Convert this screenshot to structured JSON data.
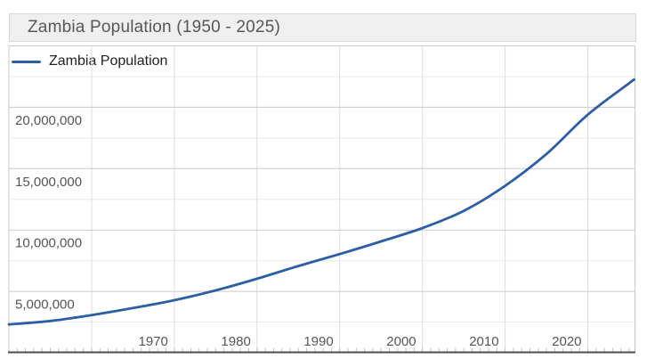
{
  "page": {
    "background": "#ffffff"
  },
  "header": {
    "title": "Zambia Population (1950 - 2025)"
  },
  "legend": {
    "label": "Zambia Population",
    "swatch_color": "#2d5da4"
  },
  "chart_data": {
    "type": "line",
    "title": "Zambia Population (1950 - 2025)",
    "xlabel": "",
    "ylabel": "",
    "xlim": [
      1950,
      2025
    ],
    "ylim": [
      0,
      25000000
    ],
    "grid": true,
    "legend_position": "top-left",
    "line_color": "#2d5da4",
    "axis_text_color": "#555555",
    "grid_major_color": "#c9c9c9",
    "grid_minor_color": "#e9e9e9",
    "grid_vertical_color": "#dcdcdc",
    "axis_line_color": "#4c4c4c",
    "series": [
      {
        "name": "Zambia Population",
        "x": [
          1950,
          1955,
          1960,
          1965,
          1970,
          1975,
          1980,
          1985,
          1990,
          1995,
          2000,
          2005,
          2010,
          2015,
          2020,
          2025
        ],
        "values": [
          2310000,
          2590000,
          3070000,
          3640000,
          4280000,
          5080000,
          6030000,
          7070000,
          8040000,
          9070000,
          10160000,
          11560000,
          13600000,
          16200000,
          19400000,
          21960000
        ]
      }
    ],
    "x_grid_years": [
      1960,
      1970,
      1980,
      1990,
      2000,
      2010,
      2020
    ],
    "x_ticks": [
      {
        "year": 1970,
        "label": "1970"
      },
      {
        "year": 1980,
        "label": "1980"
      },
      {
        "year": 1990,
        "label": "1990"
      },
      {
        "year": 2000,
        "label": "2000"
      },
      {
        "year": 2010,
        "label": "2010"
      },
      {
        "year": 2020,
        "label": "2020"
      }
    ],
    "y_ticks": [
      {
        "value": 5000000,
        "label": "5,000,000"
      },
      {
        "value": 10000000,
        "label": "10,000,000"
      },
      {
        "value": 15000000,
        "label": "15,000,000"
      },
      {
        "value": 20000000,
        "label": "20,000,000"
      }
    ],
    "y_minor_ticks": [
      2500000,
      7500000,
      12500000,
      17500000,
      22500000
    ]
  }
}
